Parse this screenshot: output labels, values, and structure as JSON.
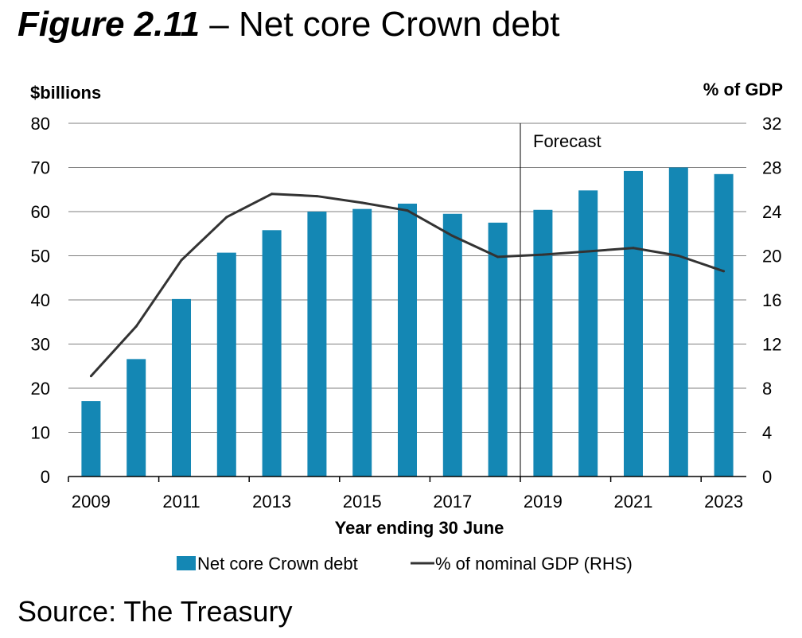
{
  "figure": {
    "number": "Figure 2.11",
    "separator": "–",
    "title": "Net core Crown debt"
  },
  "source": "Source: The Treasury",
  "colors": {
    "bar": "#1487B4",
    "line": "#333333",
    "grid": "#7f7f7f",
    "axis": "#000000"
  },
  "chart_data": {
    "type": "bar",
    "title": "Net core Crown debt",
    "xlabel": "Year ending 30 June",
    "ylabel": "$billions",
    "y2label": "% of GDP",
    "categories": [
      "2009",
      "2010",
      "2011",
      "2012",
      "2013",
      "2014",
      "2015",
      "2016",
      "2017",
      "2018",
      "2019",
      "2020",
      "2021",
      "2022",
      "2023"
    ],
    "x_tick_labels": [
      "2009",
      "2011",
      "2013",
      "2015",
      "2017",
      "2019",
      "2021",
      "2023"
    ],
    "ylim": [
      0,
      80
    ],
    "y_ticks": [
      0,
      10,
      20,
      30,
      40,
      50,
      60,
      70,
      80
    ],
    "y2lim": [
      0,
      32
    ],
    "y2_ticks": [
      0,
      4,
      8,
      12,
      16,
      20,
      24,
      28,
      32
    ],
    "grid": true,
    "legend_position": "bottom",
    "annotation": {
      "text": "Forecast",
      "after_category": "2018"
    },
    "series": [
      {
        "name": "Net core Crown debt",
        "type": "bar",
        "axis": "left",
        "values": [
          17.1,
          26.6,
          40.2,
          50.7,
          55.8,
          60.0,
          60.6,
          61.8,
          59.5,
          57.5,
          60.4,
          64.8,
          69.2,
          70.0,
          68.5
        ]
      },
      {
        "name": "% of nominal GDP (RHS)",
        "type": "line",
        "axis": "right",
        "values": [
          9.1,
          13.6,
          19.6,
          23.5,
          25.6,
          25.4,
          24.8,
          24.1,
          21.8,
          19.9,
          20.1,
          20.4,
          20.7,
          20.0,
          18.6
        ]
      }
    ]
  }
}
